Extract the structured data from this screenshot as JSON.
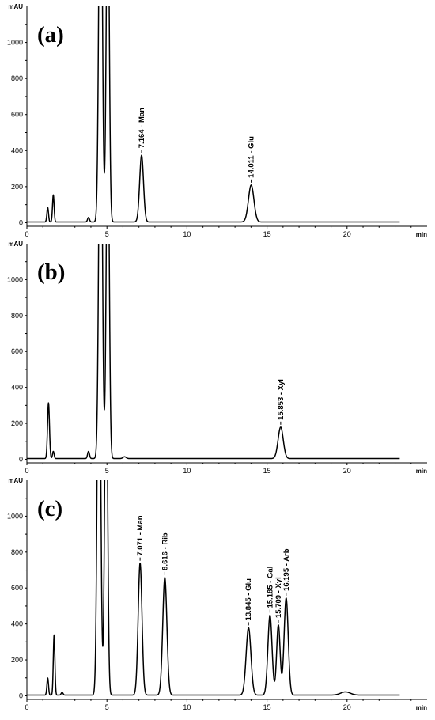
{
  "chart_data": [
    {
      "type": "line",
      "panel_label": "(a)",
      "ylabel": "mAU",
      "xlabel": "min",
      "xlim": [
        0,
        25
      ],
      "ylim": [
        -20,
        1200
      ],
      "xticks": [
        0,
        5,
        10,
        15,
        20
      ],
      "yticks": [
        0,
        200,
        400,
        600,
        800,
        1000
      ],
      "baseline": 4,
      "peaks": [
        {
          "rt": 1.3,
          "height": 80,
          "width": 0.05
        },
        {
          "rt": 1.65,
          "height": 150,
          "width": 0.05
        },
        {
          "rt": 3.85,
          "height": 25,
          "width": 0.06
        },
        {
          "rt": 4.6,
          "height": 2500,
          "width": 0.1
        },
        {
          "rt": 5.05,
          "height": 2000,
          "width": 0.09
        },
        {
          "rt": 7.164,
          "height": 370,
          "width": 0.12
        },
        {
          "rt": 14.011,
          "height": 205,
          "width": 0.17
        }
      ],
      "annotations": [
        {
          "rt": 7.164,
          "label": "7.164 - Man",
          "height": 370
        },
        {
          "rt": 14.011,
          "label": "14.011 - Glu",
          "height": 205
        }
      ]
    },
    {
      "type": "line",
      "panel_label": "(b)",
      "ylabel": "mAU",
      "xlabel": "min",
      "xlim": [
        0,
        25
      ],
      "ylim": [
        -20,
        1200
      ],
      "xticks": [
        0,
        5,
        10,
        15,
        20
      ],
      "yticks": [
        0,
        200,
        400,
        600,
        800,
        1000
      ],
      "baseline": 4,
      "peaks": [
        {
          "rt": 1.35,
          "height": 310,
          "width": 0.06
        },
        {
          "rt": 1.65,
          "height": 40,
          "width": 0.05
        },
        {
          "rt": 3.85,
          "height": 40,
          "width": 0.06
        },
        {
          "rt": 4.6,
          "height": 2500,
          "width": 0.1
        },
        {
          "rt": 5.05,
          "height": 2000,
          "width": 0.09
        },
        {
          "rt": 6.1,
          "height": 10,
          "width": 0.1
        },
        {
          "rt": 15.853,
          "height": 175,
          "width": 0.16
        }
      ],
      "annotations": [
        {
          "rt": 15.853,
          "label": "15.853 - Xyl",
          "height": 175
        }
      ]
    },
    {
      "type": "line",
      "panel_label": "(c)",
      "ylabel": "mAU",
      "xlabel": "min",
      "xlim": [
        0,
        25
      ],
      "ylim": [
        -20,
        1200
      ],
      "xticks": [
        0,
        5,
        10,
        15,
        20
      ],
      "yticks": [
        0,
        200,
        400,
        600,
        800,
        1000
      ],
      "baseline": 4,
      "peaks": [
        {
          "rt": 1.3,
          "height": 95,
          "width": 0.05
        },
        {
          "rt": 1.7,
          "height": 335,
          "width": 0.05
        },
        {
          "rt": 2.2,
          "height": 15,
          "width": 0.06
        },
        {
          "rt": 4.5,
          "height": 2500,
          "width": 0.1
        },
        {
          "rt": 4.95,
          "height": 2000,
          "width": 0.09
        },
        {
          "rt": 7.071,
          "height": 735,
          "width": 0.12
        },
        {
          "rt": 8.616,
          "height": 655,
          "width": 0.13
        },
        {
          "rt": 13.845,
          "height": 375,
          "width": 0.15
        },
        {
          "rt": 15.185,
          "height": 445,
          "width": 0.13
        },
        {
          "rt": 15.709,
          "height": 390,
          "width": 0.11
        },
        {
          "rt": 16.195,
          "height": 540,
          "width": 0.13
        },
        {
          "rt": 19.9,
          "height": 18,
          "width": 0.3
        }
      ],
      "annotations": [
        {
          "rt": 7.071,
          "label": "7.071 - Man",
          "height": 735
        },
        {
          "rt": 8.616,
          "label": "8.616 - Rib",
          "height": 655
        },
        {
          "rt": 13.845,
          "label": "13.845 - Glu",
          "height": 375
        },
        {
          "rt": 15.185,
          "label": "15.185 - Gal",
          "height": 445
        },
        {
          "rt": 15.709,
          "label": "15.709 - Xyl",
          "height": 390
        },
        {
          "rt": 16.195,
          "label": "16.195 - Arb",
          "height": 540
        }
      ]
    }
  ]
}
